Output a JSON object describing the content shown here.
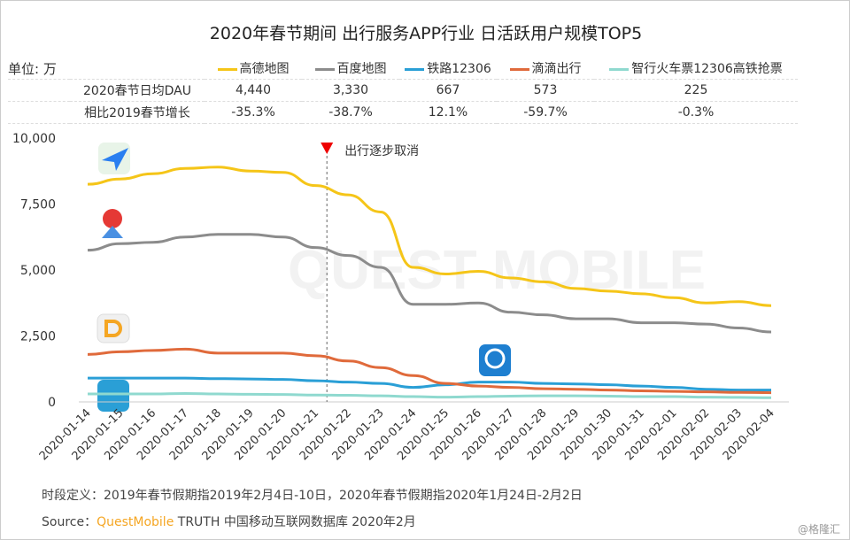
{
  "chart_data": {
    "type": "line",
    "title": "2020年春节期间 出行服务APP行业 日活跃用户规模TOP5",
    "unit_label": "单位: 万",
    "ylim": [
      0,
      10000
    ],
    "yticks": [
      "0",
      "2,500",
      "5,000",
      "7,500",
      "10,000"
    ],
    "ytick_values": [
      0,
      2500,
      5000,
      7500,
      10000
    ],
    "x": [
      "2020-01-14",
      "2020-01-15",
      "2020-01-16",
      "2020-01-17",
      "2020-01-18",
      "2020-01-19",
      "2020-01-20",
      "2020-01-21",
      "2020-01-22",
      "2020-01-23",
      "2020-01-24",
      "2020-01-25",
      "2020-01-26",
      "2020-01-27",
      "2020-01-28",
      "2020-01-29",
      "2020-01-30",
      "2020-01-31",
      "2020-02-01",
      "2020-02-02",
      "2020-02-03",
      "2020-02-04"
    ],
    "series": [
      {
        "name": "高德地图",
        "color": "#f5c518",
        "values": [
          8250,
          8450,
          8650,
          8850,
          8900,
          8750,
          8700,
          8200,
          7850,
          7200,
          5100,
          4850,
          4950,
          4700,
          4550,
          4300,
          4200,
          4100,
          3950,
          3750,
          3800,
          3650
        ]
      },
      {
        "name": "百度地图",
        "color": "#8c8c8c",
        "values": [
          5750,
          6000,
          6050,
          6250,
          6350,
          6350,
          6250,
          5850,
          5550,
          5100,
          3700,
          3700,
          3750,
          3400,
          3300,
          3150,
          3150,
          3000,
          3000,
          2950,
          2800,
          2650
        ]
      },
      {
        "name": "铁路12306",
        "color": "#2a9fd6",
        "values": [
          900,
          900,
          900,
          900,
          880,
          870,
          850,
          800,
          750,
          700,
          550,
          650,
          750,
          750,
          700,
          680,
          650,
          600,
          550,
          480,
          450,
          450
        ]
      },
      {
        "name": "滴滴出行",
        "color": "#e06a3b",
        "values": [
          1800,
          1900,
          1950,
          2000,
          1850,
          1850,
          1850,
          1750,
          1550,
          1300,
          1000,
          700,
          600,
          550,
          500,
          480,
          450,
          420,
          400,
          380,
          360,
          350
        ]
      },
      {
        "name": "智行火车票12306高铁抢票",
        "color": "#8fd9cf",
        "values": [
          300,
          300,
          300,
          320,
          300,
          290,
          280,
          260,
          250,
          230,
          200,
          180,
          200,
          220,
          230,
          230,
          220,
          200,
          200,
          180,
          170,
          160
        ]
      }
    ],
    "annotation": {
      "text": "出行逐步取消",
      "x_index": 7.35
    },
    "table": {
      "rows": [
        {
          "label": "2020春节日均DAU",
          "values": [
            "4,440",
            "3,330",
            "667",
            "573",
            "225"
          ]
        },
        {
          "label": "相比2019春节增长",
          "values": [
            "-35.3%",
            "-38.7%",
            "12.1%",
            "-59.7%",
            "-0.3%"
          ]
        }
      ]
    }
  },
  "footer": {
    "definition": "时段定义：2019年春节假期指2019年2月4日-10日，2020年春节假期指2020年1月24日-2月2日",
    "source_label": "Source：",
    "source_brand": "QuestMobile",
    "source_rest": " TRUTH 中国移动互联网数据库 2020年2月",
    "watermark": "@格隆汇"
  },
  "watermark_logo": "QUEST MOBILE"
}
